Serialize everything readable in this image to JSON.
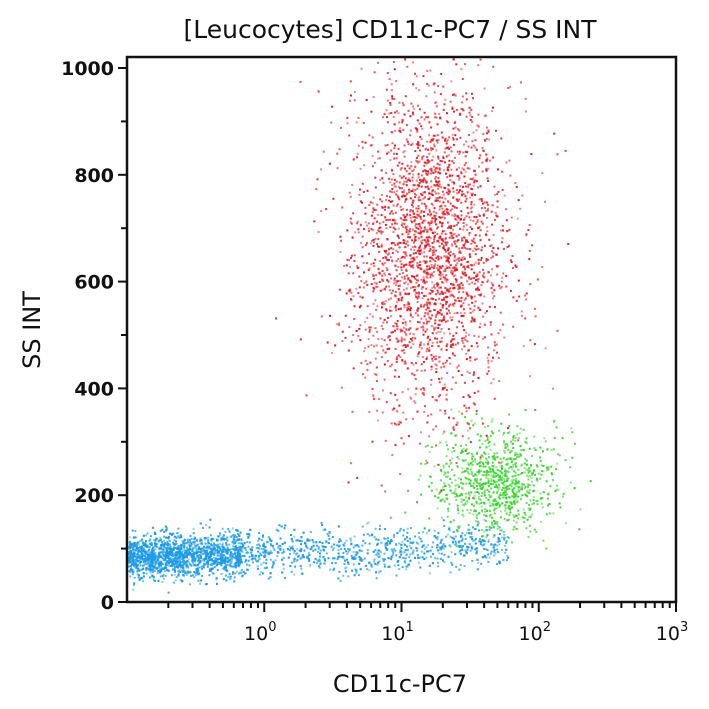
{
  "chart_data": {
    "type": "scatter",
    "title": "[Leucocytes] CD11c-PC7 / SS INT",
    "xlabel": "CD11c-PC7",
    "ylabel": "SS INT",
    "x_scale": "log",
    "xlim": [
      0.1,
      1000
    ],
    "ylim": [
      0,
      1000
    ],
    "x_ticks": [
      {
        "value": 1,
        "base": "10",
        "exp": "0"
      },
      {
        "value": 10,
        "base": "10",
        "exp": "1"
      },
      {
        "value": 100,
        "base": "10",
        "exp": "2"
      },
      {
        "value": 1000,
        "base": "10",
        "exp": "3"
      }
    ],
    "y_ticks": [
      "0",
      "200",
      "400",
      "600",
      "800",
      "1000"
    ],
    "grid": false,
    "populations": [
      {
        "color": "#e0141e",
        "x_center": 16,
        "x_sd_decades": 0.28,
        "y_center": 660,
        "y_sd": 150,
        "count": 2600
      },
      {
        "color": "#2ad21e",
        "x_center": 48,
        "x_sd_decades": 0.22,
        "y_center": 225,
        "y_sd": 48,
        "count": 900
      },
      {
        "color": "#1e9be6",
        "x_min": 0.1,
        "x_max": 60,
        "y_center": 85,
        "y_sd": 20,
        "count": 3200
      }
    ]
  }
}
